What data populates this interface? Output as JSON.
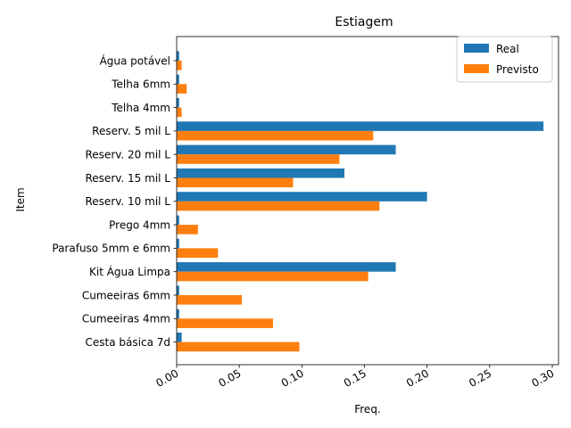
{
  "chart_data": {
    "type": "bar",
    "orientation": "horizontal",
    "title": "Estiagem",
    "xlabel": "Freq.",
    "ylabel": "Item",
    "xlim": [
      0,
      0.305
    ],
    "xticks": [
      "0.00",
      "0.05",
      "0.10",
      "0.15",
      "0.20",
      "0.25",
      "0.30"
    ],
    "xtick_values": [
      0,
      0.05,
      0.1,
      0.15,
      0.2,
      0.25,
      0.3
    ],
    "categories": [
      "Água potável",
      "Telha 6mm",
      "Telha 4mm",
      "Reserv. 5 mil L",
      "Reserv. 20 mil L",
      "Reserv. 15 mil L",
      "Reserv. 10 mil L",
      "Prego 4mm",
      "Parafuso 5mm e 6mm",
      "Kit Água Limpa",
      "Cumeeiras 6mm",
      "Cumeeiras 4mm",
      "Cesta básica 7d"
    ],
    "series": [
      {
        "name": "Real",
        "color": "#1f77b4",
        "values": [
          0.002,
          0.002,
          0.002,
          0.293,
          0.175,
          0.134,
          0.2,
          0.002,
          0.002,
          0.175,
          0.002,
          0.002,
          0.004
        ]
      },
      {
        "name": "Previsto",
        "color": "#ff7f0e",
        "values": [
          0.004,
          0.008,
          0.004,
          0.157,
          0.13,
          0.093,
          0.162,
          0.017,
          0.033,
          0.153,
          0.052,
          0.077,
          0.098
        ]
      }
    ],
    "legend_position": "top-right",
    "grid": false
  }
}
